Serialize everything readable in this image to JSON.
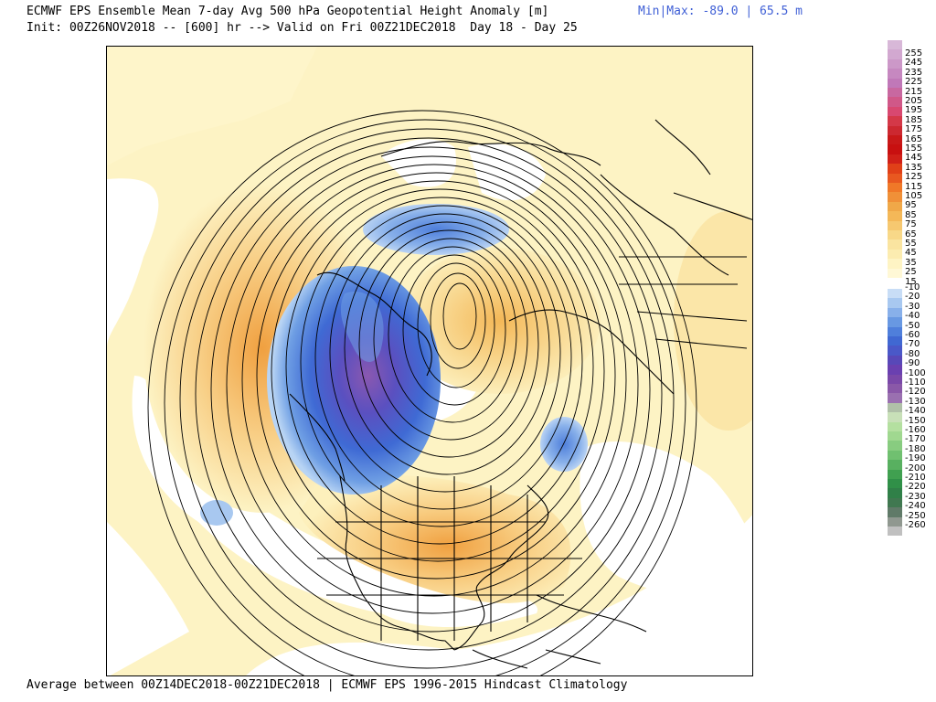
{
  "header": {
    "line1": "ECMWF EPS Ensemble Mean 7-day Avg 500 hPa Geopotential Height Anomaly [m]",
    "line2": "Init: 00Z26NOV2018 -- [600] hr --> Valid on Fri 00Z21DEC2018  Day 18 - Day 25",
    "minmax": "Min|Max: -89.0 | 65.5 m"
  },
  "footer": "Average between 00Z14DEC2018-00Z21DEC2018 | ECMWF EPS 1996-2015 Hindcast Climatology",
  "colorbar": {
    "positive_labels": [
      "255",
      "245",
      "235",
      "225",
      "215",
      "205",
      "195",
      "185",
      "175",
      "165",
      "155",
      "145",
      "135",
      "125",
      "115",
      "105",
      "95",
      "85",
      "75",
      "65",
      "55",
      "45",
      "35",
      "25",
      "15"
    ],
    "negative_labels": [
      "-10",
      "-20",
      "-30",
      "-40",
      "-50",
      "-60",
      "-70",
      "-80",
      "-90",
      "-100",
      "-110",
      "-120",
      "-130",
      "-140",
      "-150",
      "-160",
      "-170",
      "-180",
      "-190",
      "-200",
      "-210",
      "-220",
      "-230",
      "-240",
      "-250",
      "-260"
    ],
    "positive_colors": [
      "#d8b8d8",
      "#d2a8d0",
      "#cc98c8",
      "#c688c0",
      "#c078b8",
      "#c868a0",
      "#d05888",
      "#d84870",
      "#d43848",
      "#cc2830",
      "#c81818",
      "#c81010",
      "#d02018",
      "#e04018",
      "#e85820",
      "#f07828",
      "#f09038",
      "#f0a848",
      "#f4b858",
      "#f6c870",
      "#f8d888",
      "#fae4a0",
      "#fcecb0",
      "#fef4c4",
      "#fff8d6"
    ],
    "negative_colors": [
      "#c8ddf6",
      "#a8c8f0",
      "#88b0ea",
      "#6898e2",
      "#4f7fdb",
      "#4068d2",
      "#4a58c8",
      "#5848b8",
      "#6a40b0",
      "#7a48a8",
      "#8a58a8",
      "#9a70b0",
      "#b0c0a8",
      "#c8e0b8",
      "#b4e0a0",
      "#a0d890",
      "#88cc80",
      "#70c070",
      "#58b060",
      "#40a050",
      "#309048",
      "#308048",
      "#407850",
      "#607a68",
      "#909890",
      "#c0c0c0"
    ],
    "zero_band_color": "#ffffff"
  }
}
